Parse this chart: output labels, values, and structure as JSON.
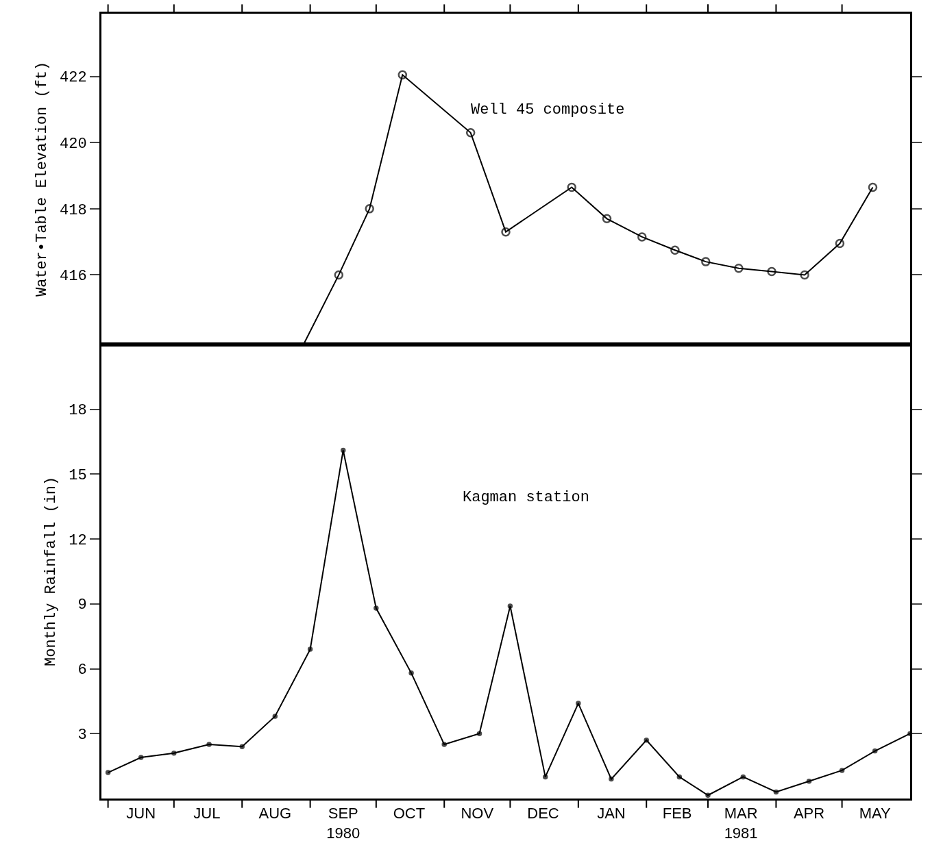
{
  "chart_data": [
    {
      "type": "line",
      "ylabel": "Water•Table Elevation (ft)",
      "annotations": [
        "Well 45 composite"
      ],
      "color": "#000000",
      "marker": "circle",
      "tick_labels": "y",
      "x": [
        "1980-08-29",
        "1980-09-14",
        "1980-09-28",
        "1980-10-13",
        "1980-11-13",
        "1980-11-29",
        "1980-12-29",
        "1981-01-14",
        "1981-01-30",
        "1981-02-14",
        "1981-02-28",
        "1981-03-15",
        "1981-03-30",
        "1981-04-14",
        "1981-04-30",
        "1981-05-15"
      ],
      "values": [
        413.9,
        416.0,
        418.0,
        422.05,
        420.3,
        417.3,
        418.65,
        417.7,
        417.15,
        416.75,
        416.4,
        416.2,
        416.1,
        416.0,
        416.95,
        418.65
      ],
      "ylim": [
        413.9,
        423.9
      ],
      "yticks": [
        416,
        418,
        420,
        422
      ],
      "xlim": [
        "1980-05-29",
        "1981-06-01"
      ],
      "xticks": [
        {
          "value": "1980-06-01",
          "label": null
        },
        {
          "value": "1980-07-01",
          "label": null
        },
        {
          "value": "1980-08-01",
          "label": null
        },
        {
          "value": "1980-09-01",
          "label": null
        },
        {
          "value": "1980-10-01",
          "label": null
        },
        {
          "value": "1980-11-01",
          "label": null
        },
        {
          "value": "1980-12-01",
          "label": null
        },
        {
          "value": "1981-01-01",
          "label": null
        },
        {
          "value": "1981-02-01",
          "label": null
        },
        {
          "value": "1981-03-01",
          "label": null
        },
        {
          "value": "1981-04-01",
          "label": null
        },
        {
          "value": "1981-05-01",
          "label": null
        }
      ]
    },
    {
      "type": "line",
      "ylabel": "Monthly Rainfall (in)",
      "annotations": [
        "Kagman station"
      ],
      "color": "#000000",
      "marker": "circle",
      "x": [
        "1980-06-01",
        "1980-06-16",
        "1980-07-01",
        "1980-07-17",
        "1980-08-01",
        "1980-08-16",
        "1980-09-01",
        "1980-09-16",
        "1980-10-01",
        "1980-10-17",
        "1980-11-01",
        "1980-11-17",
        "1980-12-01",
        "1980-12-17",
        "1981-01-01",
        "1981-01-16",
        "1981-02-01",
        "1981-02-16",
        "1981-03-01",
        "1981-03-17",
        "1981-04-01",
        "1981-04-16",
        "1981-05-01",
        "1981-05-16",
        "1981-06-01"
      ],
      "values": [
        1.2,
        1.9,
        2.1,
        2.5,
        2.4,
        3.8,
        6.9,
        16.1,
        8.8,
        5.8,
        2.5,
        3.0,
        8.9,
        1.0,
        4.4,
        0.9,
        2.7,
        1.0,
        0.15,
        1.0,
        0.3,
        0.8,
        1.3,
        2.2,
        3.0
      ],
      "ylim": [
        0,
        21
      ],
      "yticks": [
        3,
        6,
        9,
        12,
        15,
        18
      ],
      "xlim": [
        "1980-05-29",
        "1981-06-01"
      ],
      "xticks": [
        {
          "value": "1980-06-01",
          "label": null
        },
        {
          "value": "1980-06-16",
          "label": "JUN"
        },
        {
          "value": "1980-07-01",
          "label": null
        },
        {
          "value": "1980-07-16",
          "label": "JUL"
        },
        {
          "value": "1980-08-01",
          "label": null
        },
        {
          "value": "1980-08-16",
          "label": "AUG"
        },
        {
          "value": "1980-09-01",
          "label": null
        },
        {
          "value": "1980-09-16",
          "label": "SEP\n1980"
        },
        {
          "value": "1980-10-01",
          "label": null
        },
        {
          "value": "1980-10-16",
          "label": "OCT"
        },
        {
          "value": "1980-11-01",
          "label": null
        },
        {
          "value": "1980-11-16",
          "label": "NOV"
        },
        {
          "value": "1980-12-01",
          "label": null
        },
        {
          "value": "1980-12-16",
          "label": "DEC"
        },
        {
          "value": "1981-01-01",
          "label": null
        },
        {
          "value": "1981-01-16",
          "label": "JAN"
        },
        {
          "value": "1981-02-01",
          "label": null
        },
        {
          "value": "1981-02-15",
          "label": "FEB"
        },
        {
          "value": "1981-03-01",
          "label": null
        },
        {
          "value": "1981-03-16",
          "label": "MAR\n1981"
        },
        {
          "value": "1981-04-01",
          "label": null
        },
        {
          "value": "1981-04-16",
          "label": "APR"
        },
        {
          "value": "1981-05-01",
          "label": null
        },
        {
          "value": "1981-05-16",
          "label": "MAY"
        }
      ]
    }
  ]
}
